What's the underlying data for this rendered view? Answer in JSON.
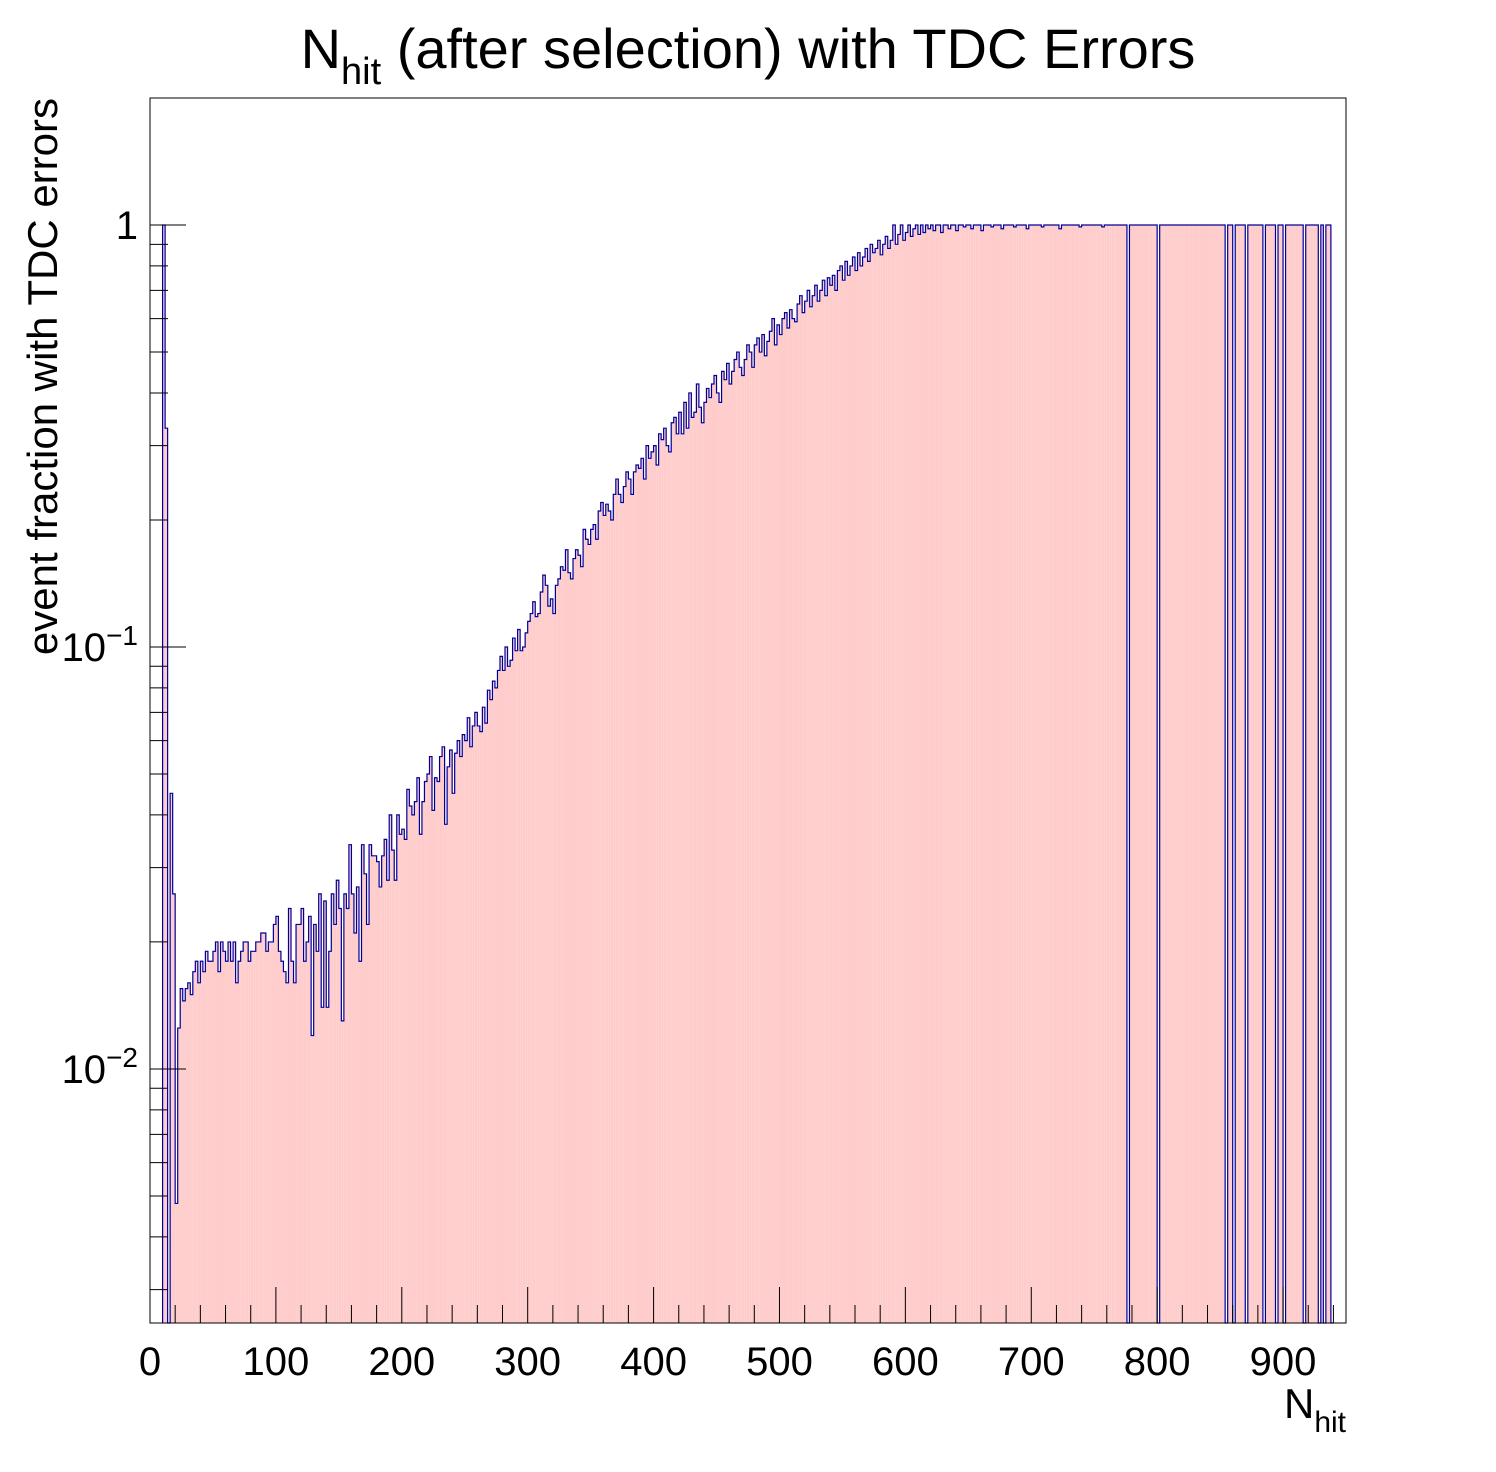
{
  "chart_data": {
    "type": "histogram",
    "title": {
      "main": "N",
      "sub": "hit",
      "rest": " (after selection) with TDC Errors"
    },
    "xlabel": {
      "main": "N",
      "sub": "hit"
    },
    "ylabel": "event fraction with TDC errors",
    "xlim": [
      0,
      950
    ],
    "ylim": [
      0.0025,
      2.0
    ],
    "yscale": "log",
    "x_ticks": [
      0,
      100,
      200,
      300,
      400,
      500,
      600,
      700,
      800,
      900
    ],
    "x_tick_labels": [
      "0",
      "100",
      "200",
      "300",
      "400",
      "500",
      "600",
      "700",
      "800",
      "900"
    ],
    "y_ticks": [
      {
        "value": 1,
        "label": "1",
        "exp": ""
      },
      {
        "value": 0.1,
        "label": "10",
        "exp": "−1"
      },
      {
        "value": 0.01,
        "label": "10",
        "exp": "−2"
      }
    ],
    "bin_width": 2,
    "grid": false,
    "fill_color": "#ffcccc",
    "line_color": "#000099",
    "x": [
      10,
      12,
      14,
      16,
      18,
      20,
      22,
      24,
      26,
      28,
      30,
      32,
      34,
      36,
      38,
      40,
      42,
      44,
      46,
      48,
      50,
      52,
      54,
      56,
      58,
      60,
      62,
      64,
      66,
      68,
      70,
      72,
      74,
      76,
      78,
      80,
      82,
      84,
      86,
      88,
      90,
      92,
      94,
      96,
      98,
      100,
      102,
      104,
      106,
      108,
      110,
      112,
      114,
      116,
      118,
      120,
      122,
      124,
      126,
      128,
      130,
      132,
      134,
      136,
      138,
      140,
      142,
      144,
      146,
      148,
      150,
      152,
      154,
      156,
      158,
      160,
      162,
      164,
      166,
      168,
      170,
      172,
      174,
      176,
      178,
      180,
      182,
      184,
      186,
      188,
      190,
      192,
      194,
      196,
      198,
      200,
      202,
      204,
      206,
      208,
      210,
      212,
      214,
      216,
      218,
      220,
      222,
      224,
      226,
      228,
      230,
      232,
      234,
      236,
      238,
      240,
      242,
      244,
      246,
      248,
      250,
      252,
      254,
      256,
      258,
      260,
      262,
      264,
      266,
      268,
      270,
      272,
      274,
      276,
      278,
      280,
      282,
      284,
      286,
      288,
      290,
      292,
      294,
      296,
      298,
      300,
      302,
      304,
      306,
      308,
      310,
      312,
      314,
      316,
      318,
      320,
      322,
      324,
      326,
      328,
      330,
      332,
      334,
      336,
      338,
      340,
      342,
      344,
      346,
      348,
      350,
      352,
      354,
      356,
      358,
      360,
      362,
      364,
      366,
      368,
      370,
      372,
      374,
      376,
      378,
      380,
      382,
      384,
      386,
      388,
      390,
      392,
      394,
      396,
      398,
      400,
      402,
      404,
      406,
      408,
      410,
      412,
      414,
      416,
      418,
      420,
      422,
      424,
      426,
      428,
      430,
      432,
      434,
      436,
      438,
      440,
      442,
      444,
      446,
      448,
      450,
      452,
      454,
      456,
      458,
      460,
      462,
      464,
      466,
      468,
      470,
      472,
      474,
      476,
      478,
      480,
      482,
      484,
      486,
      488,
      490,
      492,
      494,
      496,
      498,
      500,
      502,
      504,
      506,
      508,
      510,
      512,
      514,
      516,
      518,
      520,
      522,
      524,
      526,
      528,
      530,
      532,
      534,
      536,
      538,
      540,
      542,
      544,
      546,
      548,
      550,
      552,
      554,
      556,
      558,
      560,
      562,
      564,
      566,
      568,
      570,
      572,
      574,
      576,
      578,
      580,
      582,
      584,
      586,
      588,
      590,
      592,
      594,
      596,
      598,
      600,
      602,
      604,
      606,
      608,
      610,
      612,
      614,
      616,
      618,
      620,
      622,
      624,
      626,
      628,
      630,
      632,
      634,
      636,
      638,
      640,
      642,
      644,
      646,
      648,
      650,
      652,
      654,
      656,
      658,
      660,
      662,
      664,
      666,
      668,
      670,
      672,
      674,
      676,
      678,
      680,
      682,
      684,
      686,
      688,
      690,
      692,
      694,
      696,
      698,
      700,
      702,
      704,
      706,
      708,
      710,
      712,
      714,
      716,
      718,
      720,
      722,
      724,
      726,
      728,
      730,
      732,
      734,
      736,
      738,
      740,
      742,
      744,
      746,
      748,
      750,
      752,
      754,
      756,
      758,
      760,
      762,
      764,
      766,
      768,
      770,
      772,
      774,
      776,
      778,
      780,
      782,
      784,
      786,
      788,
      790,
      792,
      794,
      796,
      798,
      800,
      802,
      804,
      806,
      808,
      810,
      812,
      814,
      816,
      818,
      820,
      822,
      824,
      826,
      828,
      830,
      832,
      834,
      836,
      838,
      840,
      842,
      844,
      846,
      848,
      850,
      852,
      854,
      856,
      858,
      860,
      862,
      864,
      866,
      868,
      870,
      872,
      874,
      876,
      878,
      880,
      882,
      884,
      886,
      888,
      890,
      892,
      894,
      896,
      898,
      900,
      902,
      904,
      906,
      908,
      910,
      912,
      914,
      916,
      918,
      920,
      922,
      924,
      926,
      928,
      930,
      932,
      934,
      936,
      938
    ],
    "values": [
      1.0,
      0.33,
      0,
      0.045,
      0.026,
      0.0048,
      0.0125,
      0.0155,
      0.0145,
      0.0155,
      0.016,
      0.015,
      0.017,
      0.018,
      0.016,
      0.018,
      0.017,
      0.019,
      0.018,
      0.018,
      0.019,
      0.02,
      0.017,
      0.02,
      0.019,
      0.018,
      0.02,
      0.018,
      0.02,
      0.016,
      0.018,
      0.019,
      0.02,
      0.02,
      0.018,
      0.019,
      0.019,
      0.02,
      0.02,
      0.021,
      0.021,
      0.019,
      0.02,
      0.02,
      0.022,
      0.023,
      0.019,
      0.018,
      0.017,
      0.016,
      0.024,
      0.018,
      0.016,
      0.022,
      0.022,
      0.024,
      0.018,
      0.02,
      0.023,
      0.012,
      0.022,
      0.019,
      0.026,
      0.014,
      0.025,
      0.014,
      0.019,
      0.026,
      0.022,
      0.028,
      0.024,
      0.013,
      0.026,
      0.024,
      0.034,
      0.026,
      0.021,
      0.027,
      0.018,
      0.034,
      0.029,
      0.022,
      0.034,
      0.032,
      0.032,
      0.031,
      0.027,
      0.032,
      0.035,
      0.028,
      0.04,
      0.033,
      0.028,
      0.04,
      0.036,
      0.037,
      0.035,
      0.046,
      0.042,
      0.04,
      0.043,
      0.049,
      0.036,
      0.043,
      0.048,
      0.05,
      0.055,
      0.041,
      0.049,
      0.048,
      0.055,
      0.058,
      0.038,
      0.052,
      0.057,
      0.045,
      0.056,
      0.06,
      0.055,
      0.062,
      0.06,
      0.068,
      0.058,
      0.065,
      0.07,
      0.065,
      0.063,
      0.072,
      0.066,
      0.079,
      0.075,
      0.083,
      0.08,
      0.088,
      0.095,
      0.088,
      0.1,
      0.09,
      0.093,
      0.105,
      0.098,
      0.11,
      0.098,
      0.1,
      0.108,
      0.115,
      0.12,
      0.128,
      0.118,
      0.12,
      0.135,
      0.148,
      0.14,
      0.125,
      0.13,
      0.12,
      0.14,
      0.145,
      0.155,
      0.152,
      0.17,
      0.15,
      0.145,
      0.162,
      0.17,
      0.165,
      0.155,
      0.19,
      0.18,
      0.175,
      0.19,
      0.195,
      0.18,
      0.21,
      0.22,
      0.205,
      0.218,
      0.21,
      0.2,
      0.23,
      0.25,
      0.23,
      0.22,
      0.24,
      0.26,
      0.25,
      0.23,
      0.26,
      0.27,
      0.265,
      0.28,
      0.25,
      0.3,
      0.28,
      0.29,
      0.3,
      0.27,
      0.32,
      0.31,
      0.33,
      0.3,
      0.29,
      0.34,
      0.35,
      0.32,
      0.36,
      0.32,
      0.38,
      0.33,
      0.4,
      0.35,
      0.36,
      0.42,
      0.37,
      0.34,
      0.38,
      0.41,
      0.39,
      0.42,
      0.44,
      0.4,
      0.38,
      0.45,
      0.43,
      0.47,
      0.42,
      0.45,
      0.48,
      0.5,
      0.46,
      0.44,
      0.48,
      0.52,
      0.5,
      0.46,
      0.52,
      0.54,
      0.5,
      0.55,
      0.49,
      0.53,
      0.56,
      0.6,
      0.52,
      0.58,
      0.55,
      0.6,
      0.62,
      0.57,
      0.63,
      0.6,
      0.59,
      0.65,
      0.68,
      0.62,
      0.66,
      0.7,
      0.64,
      0.68,
      0.72,
      0.66,
      0.7,
      0.74,
      0.68,
      0.75,
      0.72,
      0.76,
      0.7,
      0.78,
      0.8,
      0.74,
      0.82,
      0.76,
      0.8,
      0.84,
      0.78,
      0.86,
      0.8,
      0.84,
      0.88,
      0.82,
      0.9,
      0.86,
      0.88,
      0.92,
      0.85,
      0.9,
      0.94,
      0.88,
      0.92,
      1.0,
      0.9,
      0.95,
      1.0,
      0.92,
      0.96,
      1.0,
      0.94,
      0.98,
      1.0,
      0.95,
      1.0,
      0.96,
      1.0,
      0.98,
      1.0,
      0.97,
      1.0,
      1.0,
      0.96,
      1.0,
      1.0,
      0.98,
      1.0,
      1.0,
      0.97,
      1.0,
      1.0,
      0.99,
      1.0,
      1.0,
      0.98,
      1.0,
      1.0,
      1.0,
      0.97,
      1.0,
      1.0,
      1.0,
      0.99,
      1.0,
      1.0,
      1.0,
      0.98,
      1.0,
      1.0,
      1.0,
      1.0,
      0.99,
      1.0,
      1.0,
      1.0,
      1.0,
      0.98,
      1.0,
      1.0,
      1.0,
      1.0,
      1.0,
      0.99,
      1.0,
      1.0,
      1.0,
      1.0,
      1.0,
      1.0,
      0.98,
      1.0,
      1.0,
      1.0,
      1.0,
      1.0,
      1.0,
      1.0,
      0.99,
      1.0,
      1.0,
      1.0,
      1.0,
      1.0,
      1.0,
      1.0,
      1.0,
      0.99,
      1.0,
      1.0,
      1.0,
      1.0,
      1.0,
      1.0,
      1.0,
      1.0,
      1.0,
      0,
      1.0,
      1.0,
      1.0,
      1.0,
      1.0,
      1.0,
      1.0,
      1.0,
      1.0,
      1.0,
      1.0,
      0,
      1.0,
      1.0,
      1.0,
      1.0,
      1.0,
      1.0,
      1.0,
      1.0,
      1.0,
      1.0,
      1.0,
      1.0,
      1.0,
      1.0,
      1.0,
      1.0,
      1.0,
      1.0,
      1.0,
      1.0,
      1.0,
      1.0,
      1.0,
      1.0,
      1.0,
      1.0,
      0,
      1.0,
      1.0,
      0,
      1.0,
      1.0,
      1.0,
      1.0,
      0,
      1.0,
      1.0,
      1.0,
      1.0,
      1.0,
      1.0,
      0,
      1.0,
      1.0,
      1.0,
      1.0,
      0,
      1.0,
      1.0,
      0,
      1.0,
      1.0,
      1.0,
      1.0,
      1.0,
      1.0,
      1.0,
      0,
      1.0,
      1.0,
      1.0,
      1.0,
      1.0,
      0,
      1.0,
      0,
      1.0,
      1.0,
      0
    ]
  }
}
